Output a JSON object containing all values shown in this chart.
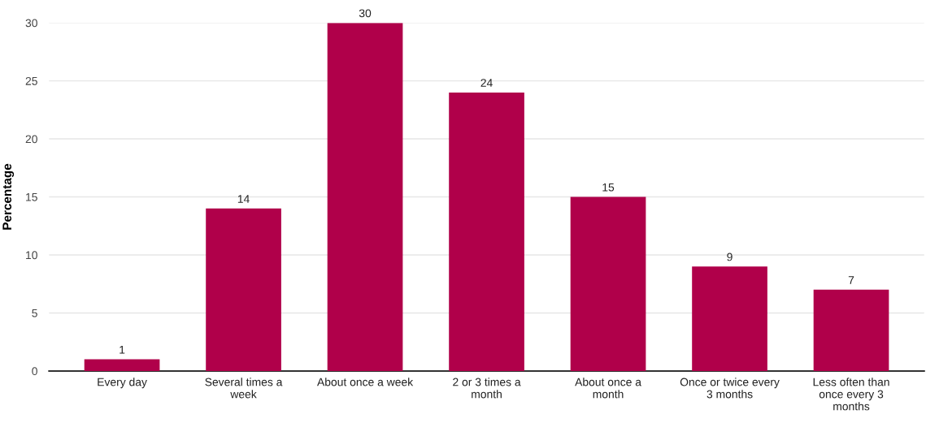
{
  "chart_data": {
    "type": "bar",
    "ylabel": "Percentage",
    "categories": [
      "Every day",
      "Several times a\nweek",
      "About once a week",
      "2 or 3 times a\nmonth",
      "About once a\nmonth",
      "Once or twice every\n3 months",
      "Less often than\nonce every 3\nmonths"
    ],
    "values": [
      1,
      14,
      30,
      24,
      15,
      9,
      7
    ],
    "color": "#b0004a",
    "ylim": [
      0,
      30
    ],
    "yticks": [
      0,
      5,
      10,
      15,
      20,
      25,
      30
    ],
    "grid": "y",
    "data_labels": true
  }
}
